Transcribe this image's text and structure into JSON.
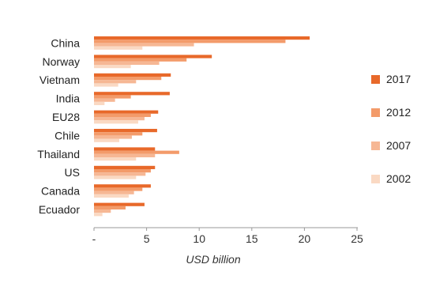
{
  "chart_data": {
    "type": "bar",
    "orientation": "horizontal",
    "categories": [
      "China",
      "Norway",
      "Vietnam",
      "India",
      "EU28",
      "Chile",
      "Thailand",
      "US",
      "Canada",
      "Ecuador"
    ],
    "series": [
      {
        "name": "2017",
        "color": "#e8692a",
        "values": [
          20.5,
          11.2,
          7.3,
          7.2,
          6.1,
          6.0,
          5.8,
          5.8,
          5.4,
          4.8
        ]
      },
      {
        "name": "2012",
        "color": "#f39b6a",
        "values": [
          18.2,
          8.8,
          6.4,
          3.5,
          5.4,
          4.6,
          8.1,
          5.4,
          4.6,
          3.0
        ]
      },
      {
        "name": "2007",
        "color": "#f6b794",
        "values": [
          9.5,
          6.2,
          4.0,
          2.0,
          4.8,
          3.6,
          5.8,
          4.9,
          3.8,
          1.6
        ]
      },
      {
        "name": "2002",
        "color": "#fad9c3",
        "values": [
          4.6,
          3.5,
          2.3,
          1.0,
          4.2,
          2.4,
          4.0,
          4.0,
          3.3,
          0.8
        ]
      }
    ],
    "x_ticks": [
      "-",
      "5",
      "10",
      "15",
      "20",
      "25"
    ],
    "xlim": [
      0,
      25
    ],
    "xlabel": "USD billion",
    "legend_position": "right",
    "grid": false
  }
}
